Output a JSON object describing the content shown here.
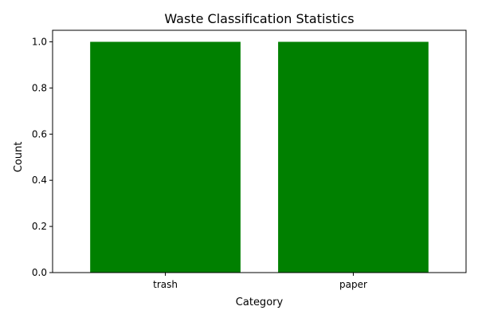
{
  "chart_data": {
    "type": "bar",
    "title": "Waste Classification Statistics",
    "xlabel": "Category",
    "ylabel": "Count",
    "categories": [
      "trash",
      "paper"
    ],
    "values": [
      1,
      1
    ],
    "ylim": [
      0,
      1.05
    ],
    "yticks": [
      0.0,
      0.2,
      0.4,
      0.6,
      0.8,
      1.0
    ],
    "ytick_labels": [
      "0.0",
      "0.2",
      "0.4",
      "0.6",
      "0.8",
      "1.0"
    ],
    "bar_color": "#008000",
    "grid": false,
    "legend": "none"
  }
}
